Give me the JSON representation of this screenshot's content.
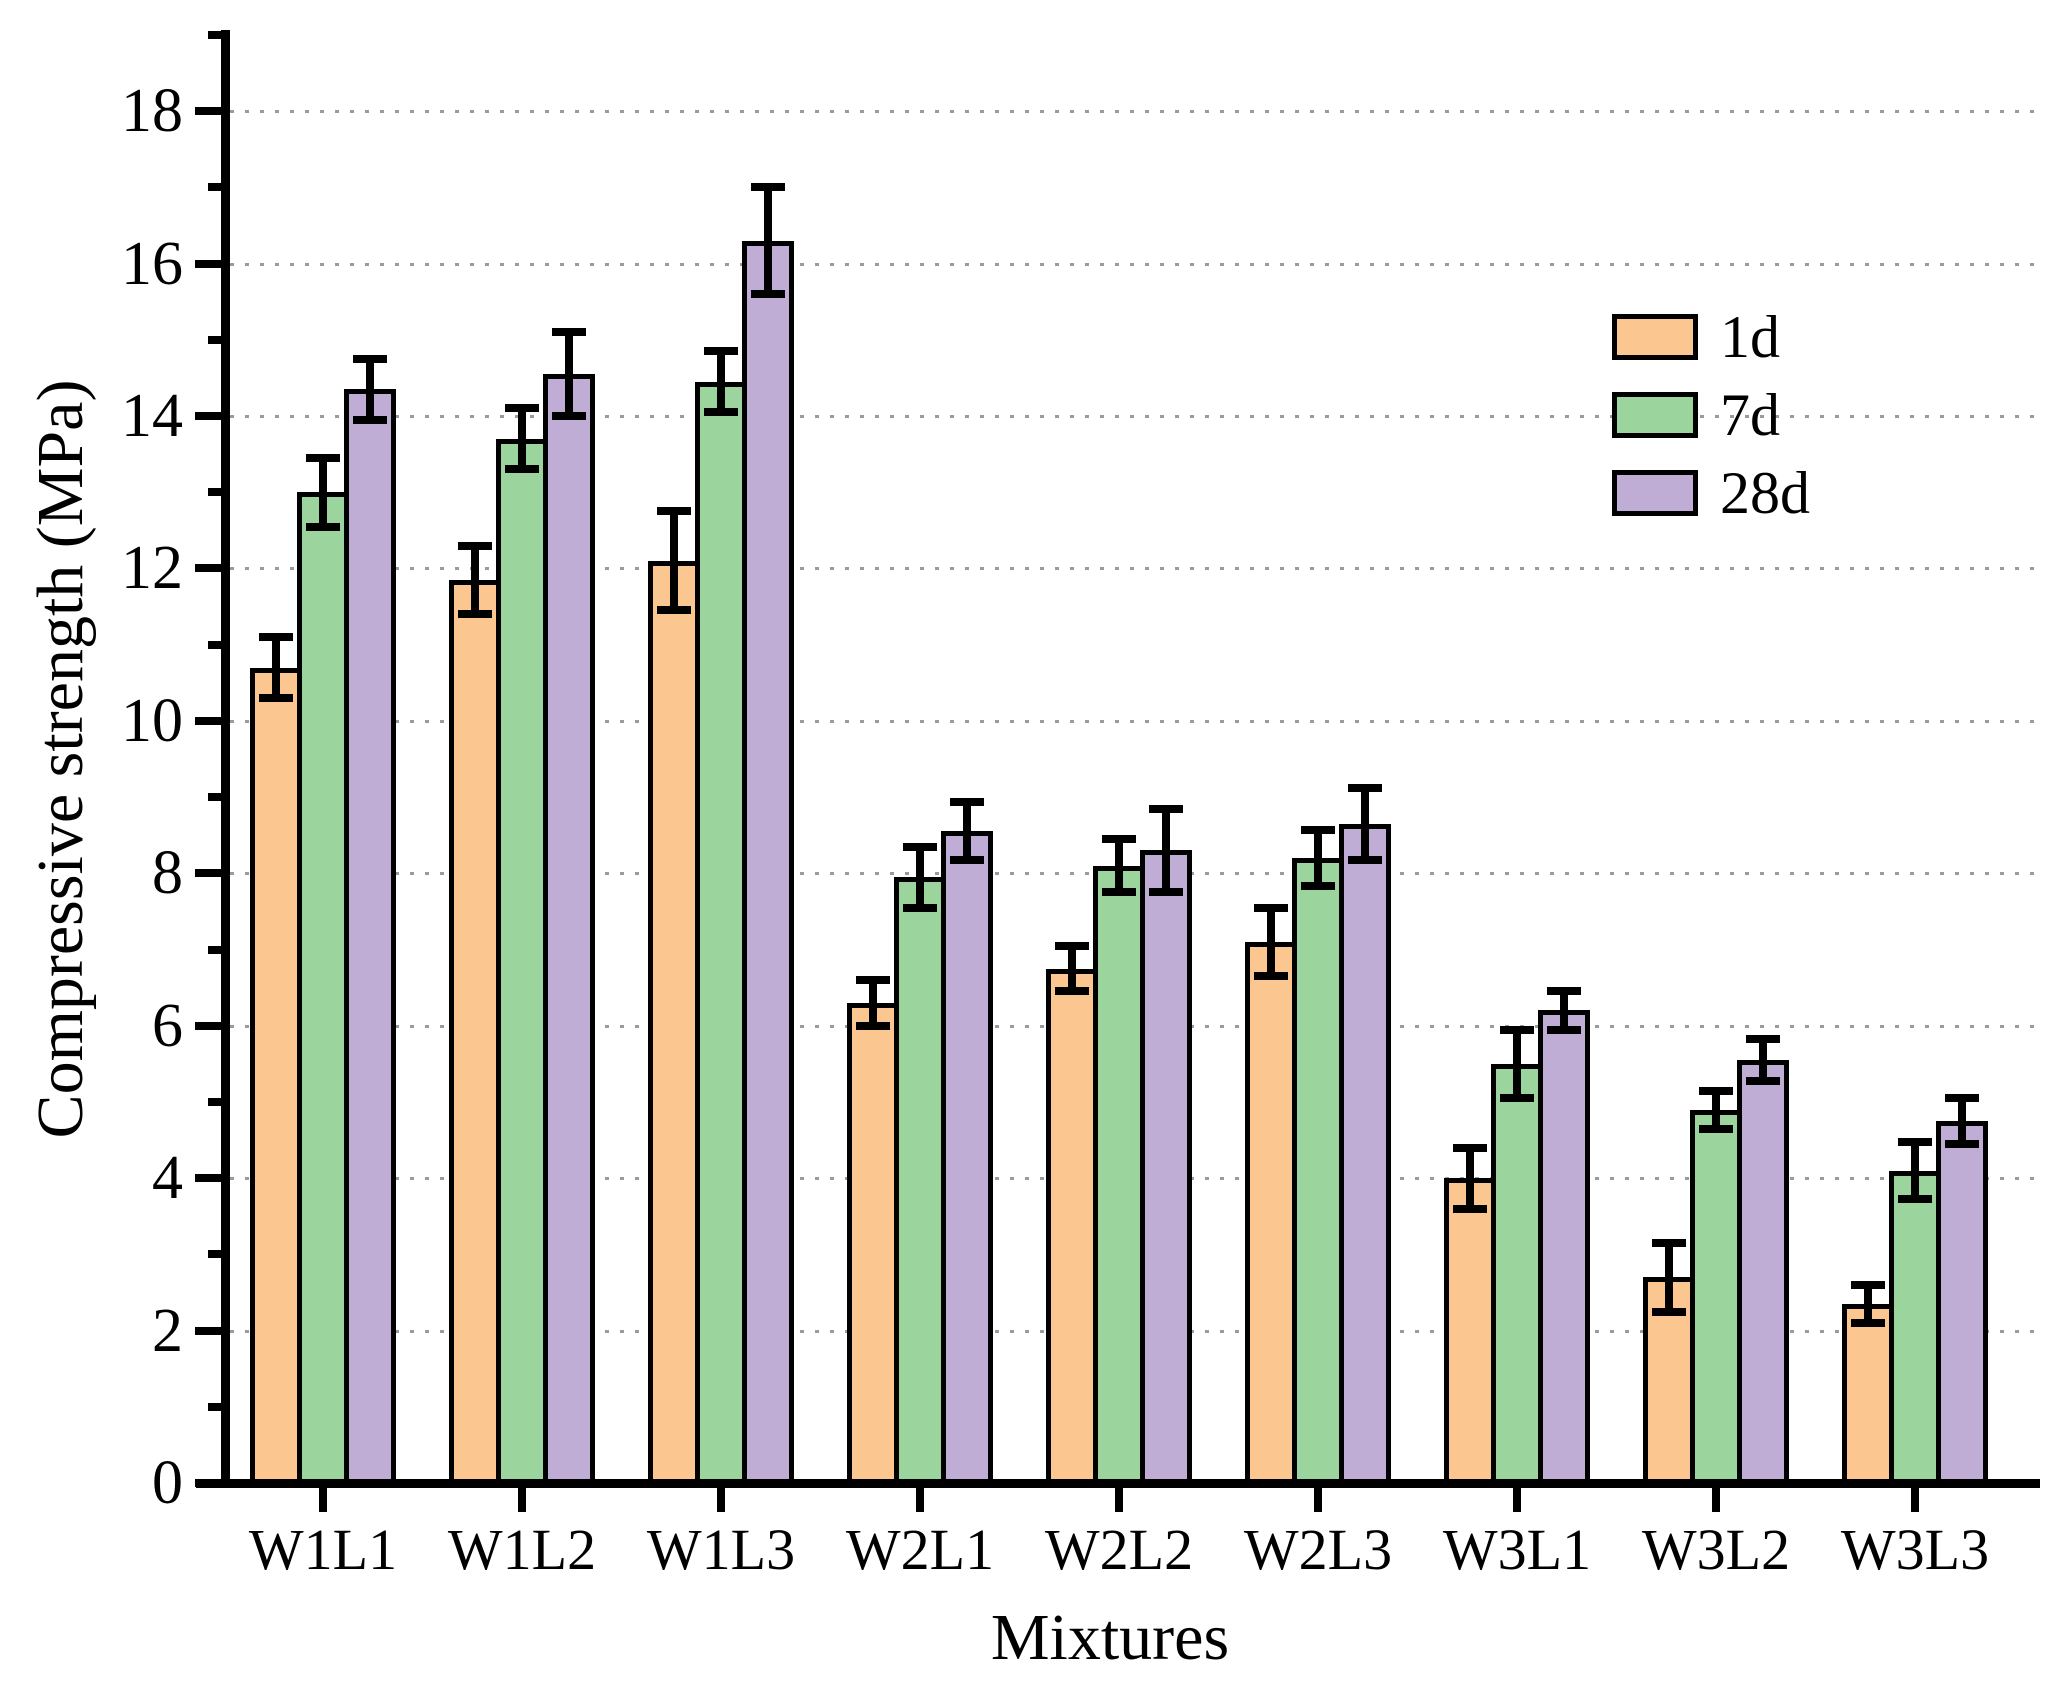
{
  "chart_data": {
    "type": "bar",
    "title": "",
    "xlabel": "Mixtures",
    "ylabel": "Compressive strength (MPa)",
    "categories": [
      "W1L1",
      "W1L2",
      "W1L3",
      "W2L1",
      "W2L2",
      "W2L3",
      "W3L1",
      "W3L2",
      "W3L3"
    ],
    "series": [
      {
        "name": "1d",
        "color": "#FBC690",
        "values": [
          10.7,
          11.85,
          12.1,
          6.3,
          6.75,
          7.1,
          4.0,
          2.7,
          2.35
        ],
        "errors": [
          0.4,
          0.45,
          0.65,
          0.3,
          0.3,
          0.45,
          0.4,
          0.45,
          0.25
        ]
      },
      {
        "name": "7d",
        "color": "#9CD49E",
        "values": [
          13.0,
          13.7,
          14.45,
          7.95,
          8.1,
          8.2,
          5.5,
          4.9,
          4.1
        ],
        "errors": [
          0.45,
          0.4,
          0.4,
          0.4,
          0.35,
          0.37,
          0.45,
          0.25,
          0.38
        ]
      },
      {
        "name": "28d",
        "color": "#C0ADD6",
        "values": [
          14.35,
          14.55,
          16.3,
          8.55,
          8.3,
          8.65,
          6.2,
          5.55,
          4.75
        ],
        "errors": [
          0.4,
          0.55,
          0.7,
          0.38,
          0.55,
          0.47,
          0.25,
          0.28,
          0.3
        ]
      }
    ],
    "ylim": [
      0,
      19
    ],
    "yticks_major": [
      0,
      2,
      4,
      6,
      8,
      10,
      12,
      14,
      16,
      18
    ],
    "yticks_minor": [
      1,
      3,
      5,
      7,
      9,
      11,
      13,
      15,
      17,
      19
    ],
    "grid": "horizontal dotted at major ticks",
    "legend_position": "upper right",
    "bar_outline_color": "#000000",
    "errorbar_color": "#000000",
    "grid_color": "#9b9b9b",
    "axis_color": "#000000"
  }
}
